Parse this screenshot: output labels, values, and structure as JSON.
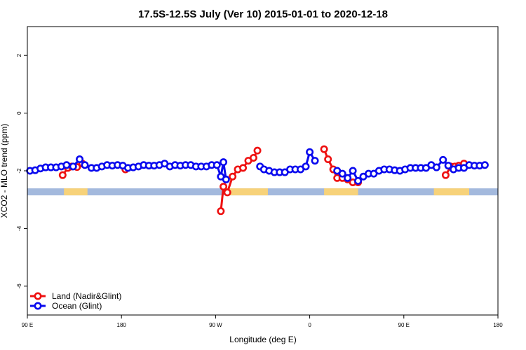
{
  "colors": {
    "land": "#ee1111",
    "ocean": "#0a0aee",
    "ocean_band": "#a3b9dd",
    "land_band": "#f7d27a"
  },
  "chart_data": {
    "type": "line",
    "title": "17.5S-12.5S July (Ver 10)   2015-01-01 to 2020-12-18",
    "xlabel": "Longitude (deg E)",
    "ylabel": "XCO2 - MLO trend (ppm)",
    "xlim": [
      90,
      450
    ],
    "ylim": [
      -7,
      3
    ],
    "x_ticks": [
      {
        "value": 90,
        "label": "90 E"
      },
      {
        "value": 162,
        "label": "180"
      },
      {
        "value": 234,
        "label": "90 W"
      },
      {
        "value": 306,
        "label": "0"
      },
      {
        "value": 378,
        "label": "90 E"
      },
      {
        "value": 450,
        "label": "180"
      }
    ],
    "y_ticks": [
      {
        "value": 2,
        "label": "2"
      },
      {
        "value": 0,
        "label": "0"
      },
      {
        "value": -2,
        "label": "-2"
      },
      {
        "value": -4,
        "label": "-4"
      },
      {
        "value": -6,
        "label": "-6"
      }
    ],
    "land_band_level": -2.73,
    "land_segments": [
      [
        118,
        136
      ],
      [
        242,
        274
      ],
      [
        317,
        343
      ],
      [
        401,
        428
      ]
    ],
    "legend_position": "bottom-left",
    "series": [
      {
        "name": "Land (Nadir&Glint)",
        "color_key": "land",
        "segments": [
          [
            [
              117,
              -2.15
            ],
            [
              121,
              -1.9
            ],
            [
              124,
              -1.85
            ],
            [
              128,
              -1.87
            ],
            [
              132,
              -1.75
            ]
          ],
          [
            [
              165,
              -1.95
            ]
          ],
          [
            [
              238,
              -3.4
            ],
            [
              240,
              -2.55
            ],
            [
              243,
              -2.75
            ],
            [
              247,
              -2.2
            ],
            [
              251,
              -1.95
            ],
            [
              255,
              -1.9
            ],
            [
              259,
              -1.65
            ],
            [
              263,
              -1.55
            ],
            [
              266,
              -1.3
            ]
          ],
          [
            [
              317,
              -1.25
            ],
            [
              320,
              -1.6
            ],
            [
              324,
              -1.95
            ],
            [
              327,
              -2.25
            ],
            [
              331,
              -2.25
            ],
            [
              335,
              -2.3
            ],
            [
              339,
              -2.4
            ],
            [
              343,
              -2.4
            ]
          ],
          [
            [
              410,
              -2.15
            ],
            [
              414,
              -1.85
            ],
            [
              417,
              -1.85
            ],
            [
              420,
              -1.82
            ],
            [
              424,
              -1.75
            ]
          ]
        ]
      },
      {
        "name": "Ocean (Glint)",
        "color_key": "ocean",
        "segments": [
          [
            [
              92,
              -2.0
            ],
            [
              96,
              -1.98
            ],
            [
              100,
              -1.92
            ],
            [
              104,
              -1.88
            ],
            [
              108,
              -1.88
            ],
            [
              112,
              -1.88
            ],
            [
              116,
              -1.85
            ],
            [
              120,
              -1.8
            ],
            [
              125,
              -1.85
            ],
            [
              130,
              -1.6
            ],
            [
              134,
              -1.8
            ],
            [
              139,
              -1.9
            ],
            [
              143,
              -1.9
            ],
            [
              147,
              -1.85
            ],
            [
              151,
              -1.8
            ],
            [
              155,
              -1.82
            ],
            [
              159,
              -1.8
            ],
            [
              163,
              -1.82
            ],
            [
              167,
              -1.9
            ],
            [
              171,
              -1.88
            ],
            [
              175,
              -1.85
            ],
            [
              179,
              -1.8
            ],
            [
              183,
              -1.82
            ],
            [
              187,
              -1.82
            ],
            [
              191,
              -1.8
            ],
            [
              195,
              -1.75
            ],
            [
              199,
              -1.85
            ],
            [
              203,
              -1.8
            ],
            [
              207,
              -1.82
            ],
            [
              211,
              -1.8
            ],
            [
              215,
              -1.8
            ],
            [
              219,
              -1.85
            ],
            [
              223,
              -1.85
            ],
            [
              227,
              -1.85
            ],
            [
              231,
              -1.8
            ],
            [
              235,
              -1.8
            ],
            [
              238,
              -2.2
            ],
            [
              240,
              -1.7
            ],
            [
              242,
              -2.3
            ]
          ],
          [
            [
              268,
              -1.85
            ],
            [
              271,
              -1.95
            ],
            [
              275,
              -2.0
            ],
            [
              279,
              -2.05
            ],
            [
              283,
              -2.05
            ],
            [
              287,
              -2.05
            ],
            [
              291,
              -1.95
            ],
            [
              295,
              -1.95
            ],
            [
              299,
              -1.95
            ],
            [
              303,
              -1.85
            ],
            [
              306,
              -1.35
            ],
            [
              310,
              -1.65
            ]
          ],
          [
            [
              327,
              -2.0
            ],
            [
              331,
              -2.1
            ],
            [
              335,
              -2.25
            ],
            [
              339,
              -2.0
            ],
            [
              343,
              -2.35
            ],
            [
              347,
              -2.2
            ],
            [
              351,
              -2.1
            ],
            [
              355,
              -2.1
            ],
            [
              359,
              -2.0
            ],
            [
              363,
              -1.95
            ],
            [
              367,
              -1.95
            ],
            [
              371,
              -1.98
            ],
            [
              375,
              -2.0
            ],
            [
              379,
              -1.95
            ],
            [
              383,
              -1.9
            ],
            [
              387,
              -1.9
            ],
            [
              391,
              -1.9
            ],
            [
              395,
              -1.9
            ],
            [
              399,
              -1.8
            ],
            [
              403,
              -1.88
            ],
            [
              408,
              -1.62
            ],
            [
              412,
              -1.82
            ],
            [
              416,
              -1.95
            ],
            [
              420,
              -1.9
            ],
            [
              424,
              -1.9
            ],
            [
              428,
              -1.8
            ],
            [
              432,
              -1.82
            ],
            [
              436,
              -1.82
            ],
            [
              440,
              -1.8
            ]
          ]
        ]
      }
    ]
  }
}
